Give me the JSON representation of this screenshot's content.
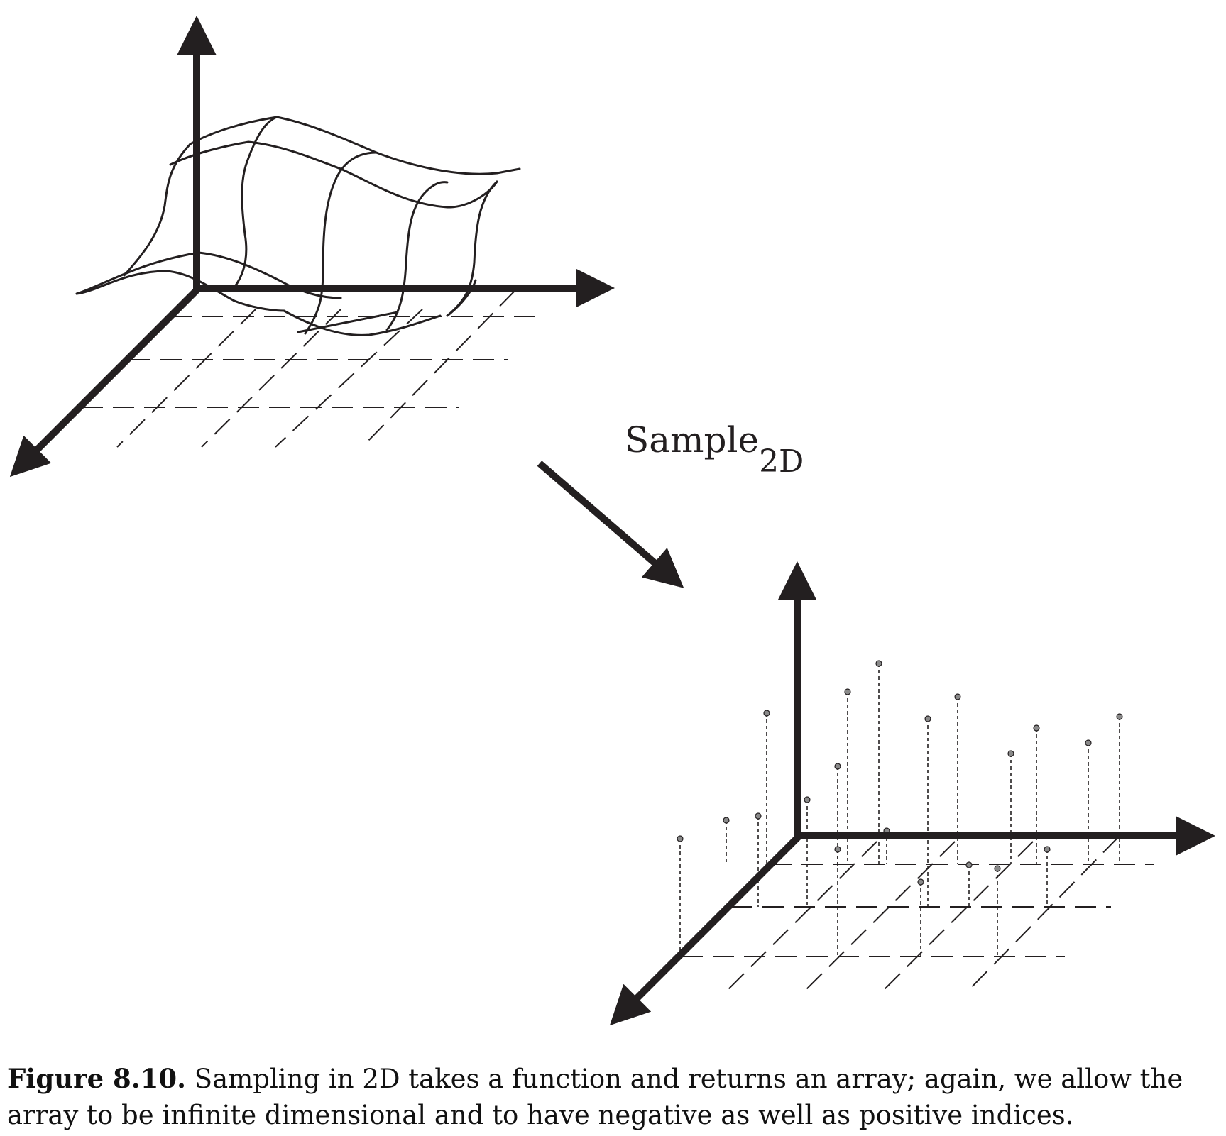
{
  "diagram": {
    "label_main": "Sample",
    "label_sub": "2D"
  },
  "caption": {
    "number": "Figure 8.10.",
    "text": "Sampling in 2D takes a function and returns an array; again, we allow the array to be infinite dimensional and to have negative as well as positive indices."
  },
  "colors": {
    "ink": "#231f20",
    "sample_dot": "#8a8a8a"
  }
}
